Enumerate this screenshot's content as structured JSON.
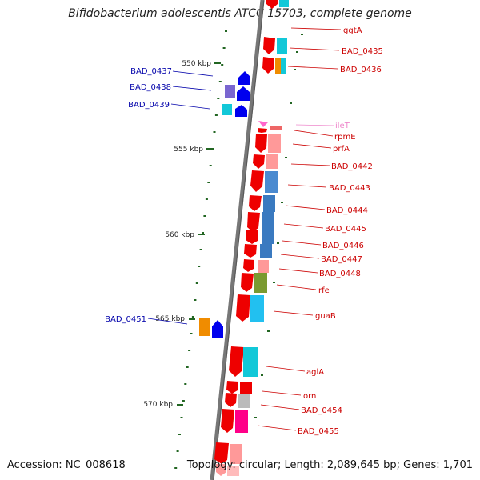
{
  "title": "Bifidobacterium adolescentis ATCC 15703, complete genome",
  "accession": "Accession: NC_008618",
  "topology": "Topology: circular; Length: 2,089,645 bp; Genes: 1,701",
  "colors": {
    "backbone": "#777777",
    "cds_red": "#ee0000",
    "cds_blue": "#0000ee",
    "left_label": "#0000aa",
    "right_label": "#cc0000",
    "trna_label": "#ee88cc",
    "tick": "#226622"
  },
  "scale_labels": [
    "550 kbp",
    "555 kbp",
    "560 kbp",
    "565 kbp",
    "570 kbp"
  ],
  "left_genes": [
    "BAD_0437",
    "BAD_0438",
    "BAD_0439",
    "BAD_0451"
  ],
  "right_genes": [
    "ggtA",
    "BAD_0435",
    "BAD_0436",
    "ileT",
    "rpmE",
    "prfA",
    "BAD_0442",
    "BAD_0443",
    "BAD_0444",
    "BAD_0445",
    "BAD_0446",
    "BAD_0447",
    "BAD_0448",
    "rfe",
    "guaB",
    "aglA",
    "orn",
    "BAD_0454",
    "BAD_0455"
  ]
}
